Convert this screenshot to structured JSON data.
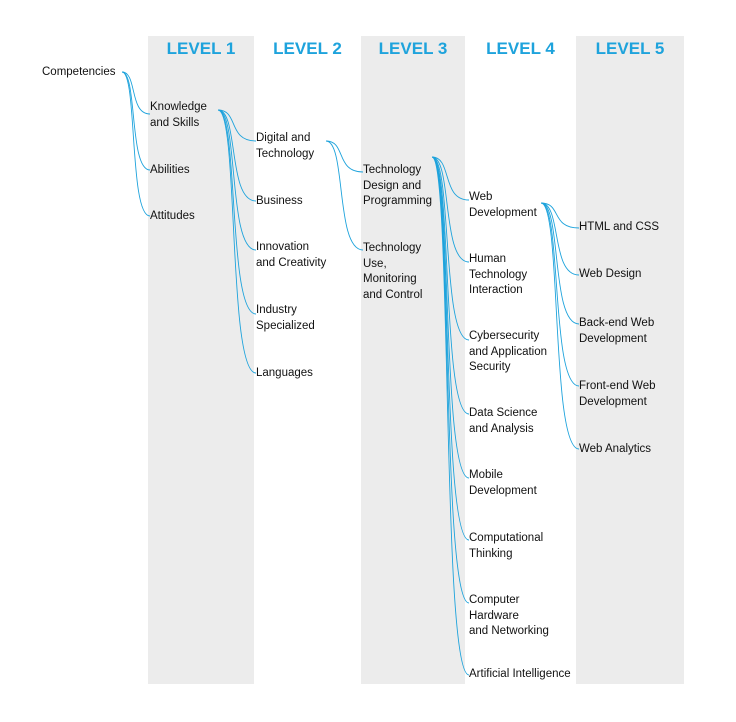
{
  "levels": [
    "LEVEL 1",
    "LEVEL 2",
    "LEVEL 3",
    "LEVEL 4",
    "LEVEL 5"
  ],
  "root": "Competencies",
  "level1": [
    "Knowledge\nand Skills",
    "Abilities",
    "Attitudes"
  ],
  "level2": [
    "Digital and\nTechnology",
    "Business",
    "Innovation\nand Creativity",
    "Industry\nSpecialized",
    "Languages"
  ],
  "level3": [
    "Technology\nDesign and\nProgramming",
    "Technology\nUse,\nMonitoring\nand Control"
  ],
  "level4": [
    "Web\nDevelopment",
    "Human\nTechnology\nInteraction",
    "Cybersecurity\nand Application\nSecurity",
    "Data Science\nand Analysis",
    "Mobile\nDevelopment",
    "Computational\nThinking",
    "Computer\nHardware\nand Networking",
    "Artificial Intelligence"
  ],
  "level5": [
    "HTML and CSS",
    "Web Design",
    "Back-end Web\nDevelopment",
    "Front-end Web\nDevelopment",
    "Web Analytics"
  ],
  "colors": {
    "accent": "#1ea3dc",
    "band": "#ececec",
    "text": "#111111"
  }
}
